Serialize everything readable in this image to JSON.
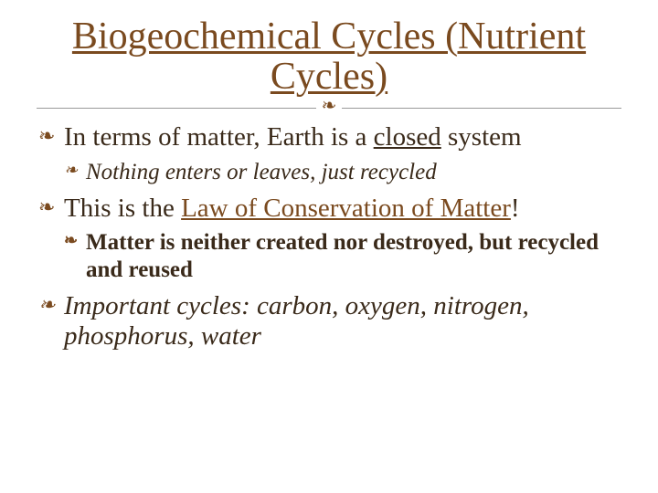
{
  "colors": {
    "title_color": "#7a4a1f",
    "text_color": "#3a2a1a",
    "bullet_color": "#7a4a1f",
    "background": "#ffffff",
    "divider_line": "#999999"
  },
  "typography": {
    "title_fontsize": 42,
    "l1_fontsize": 29,
    "l2_fontsize": 25,
    "font_family": "Georgia, serif"
  },
  "title": "Biogeochemical Cycles (Nutrient Cycles)",
  "divider_glyph": "❧",
  "bullets": {
    "b1": {
      "pre": "In terms of matter, Earth is a ",
      "u": "closed",
      "post": " system"
    },
    "b1a": "Nothing enters or leaves, just recycled",
    "b2": {
      "pre": "This is the ",
      "u": "Law of Conservation of Matter",
      "post": "!"
    },
    "b2a": "Matter is neither created nor destroyed, but recycled and reused",
    "b3": "Important cycles: carbon, oxygen, nitrogen, phosphorus, water"
  }
}
